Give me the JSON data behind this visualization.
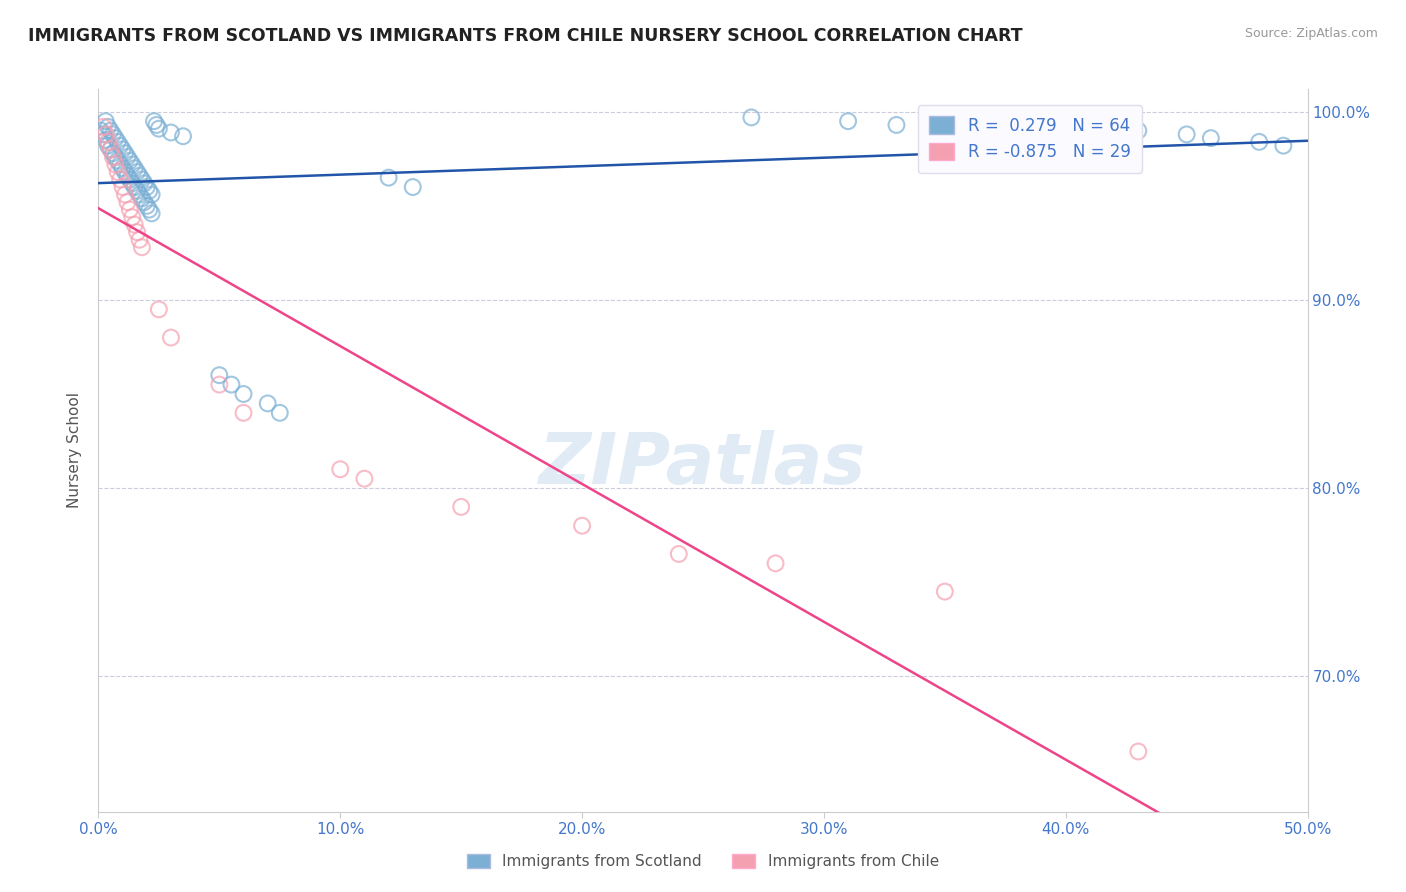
{
  "title": "IMMIGRANTS FROM SCOTLAND VS IMMIGRANTS FROM CHILE NURSERY SCHOOL CORRELATION CHART",
  "source": "Source: ZipAtlas.com",
  "ylabel": "Nursery School",
  "xmin": 0.0,
  "xmax": 0.5,
  "ymin": 0.628,
  "ymax": 1.012,
  "ytick_labels": [
    "100.0%",
    "90.0%",
    "80.0%",
    "70.0%"
  ],
  "ytick_values": [
    1.0,
    0.9,
    0.8,
    0.7
  ],
  "xtick_labels": [
    "0.0%",
    "10.0%",
    "20.0%",
    "30.0%",
    "40.0%",
    "50.0%"
  ],
  "xtick_values": [
    0.0,
    0.1,
    0.2,
    0.3,
    0.4,
    0.5
  ],
  "scotland_color": "#7BAFD4",
  "chile_color": "#F4A0B0",
  "scotland_R": 0.279,
  "scotland_N": 64,
  "chile_R": -0.875,
  "chile_N": 29,
  "scotland_line_color": "#2255AA",
  "chile_line_color": "#EE4488",
  "background_color": "#FFFFFF",
  "grid_color": "#CCCCDD",
  "title_color": "#222222",
  "watermark": "ZIPatlas",
  "scatter_size": 130,
  "scotland_points_x": [
    0.001,
    0.002,
    0.003,
    0.003,
    0.004,
    0.004,
    0.005,
    0.005,
    0.006,
    0.006,
    0.007,
    0.007,
    0.008,
    0.008,
    0.009,
    0.009,
    0.01,
    0.01,
    0.011,
    0.011,
    0.012,
    0.012,
    0.013,
    0.013,
    0.014,
    0.014,
    0.015,
    0.015,
    0.016,
    0.016,
    0.017,
    0.017,
    0.018,
    0.018,
    0.019,
    0.019,
    0.02,
    0.02,
    0.021,
    0.021,
    0.022,
    0.022,
    0.023,
    0.024,
    0.025,
    0.03,
    0.035,
    0.05,
    0.055,
    0.06,
    0.07,
    0.075,
    0.12,
    0.13,
    0.27,
    0.31,
    0.33,
    0.35,
    0.37,
    0.43,
    0.45,
    0.46,
    0.48,
    0.49
  ],
  "scotland_points_y": [
    0.99,
    0.988,
    0.995,
    0.985,
    0.992,
    0.982,
    0.99,
    0.98,
    0.988,
    0.978,
    0.986,
    0.976,
    0.984,
    0.974,
    0.982,
    0.972,
    0.98,
    0.97,
    0.978,
    0.968,
    0.976,
    0.966,
    0.974,
    0.964,
    0.972,
    0.962,
    0.97,
    0.96,
    0.968,
    0.958,
    0.966,
    0.956,
    0.964,
    0.954,
    0.962,
    0.952,
    0.96,
    0.95,
    0.958,
    0.948,
    0.956,
    0.946,
    0.995,
    0.993,
    0.991,
    0.989,
    0.987,
    0.86,
    0.855,
    0.85,
    0.845,
    0.84,
    0.965,
    0.96,
    0.997,
    0.995,
    0.993,
    0.991,
    0.989,
    0.99,
    0.988,
    0.986,
    0.984,
    0.982
  ],
  "chile_points_x": [
    0.002,
    0.003,
    0.004,
    0.005,
    0.006,
    0.007,
    0.008,
    0.009,
    0.01,
    0.011,
    0.012,
    0.013,
    0.014,
    0.015,
    0.016,
    0.017,
    0.018,
    0.025,
    0.03,
    0.05,
    0.06,
    0.1,
    0.11,
    0.15,
    0.2,
    0.24,
    0.28,
    0.35,
    0.43
  ],
  "chile_points_y": [
    0.992,
    0.988,
    0.984,
    0.98,
    0.976,
    0.972,
    0.968,
    0.964,
    0.96,
    0.956,
    0.952,
    0.948,
    0.944,
    0.94,
    0.936,
    0.932,
    0.928,
    0.895,
    0.88,
    0.855,
    0.84,
    0.81,
    0.805,
    0.79,
    0.78,
    0.765,
    0.76,
    0.745,
    0.66
  ]
}
